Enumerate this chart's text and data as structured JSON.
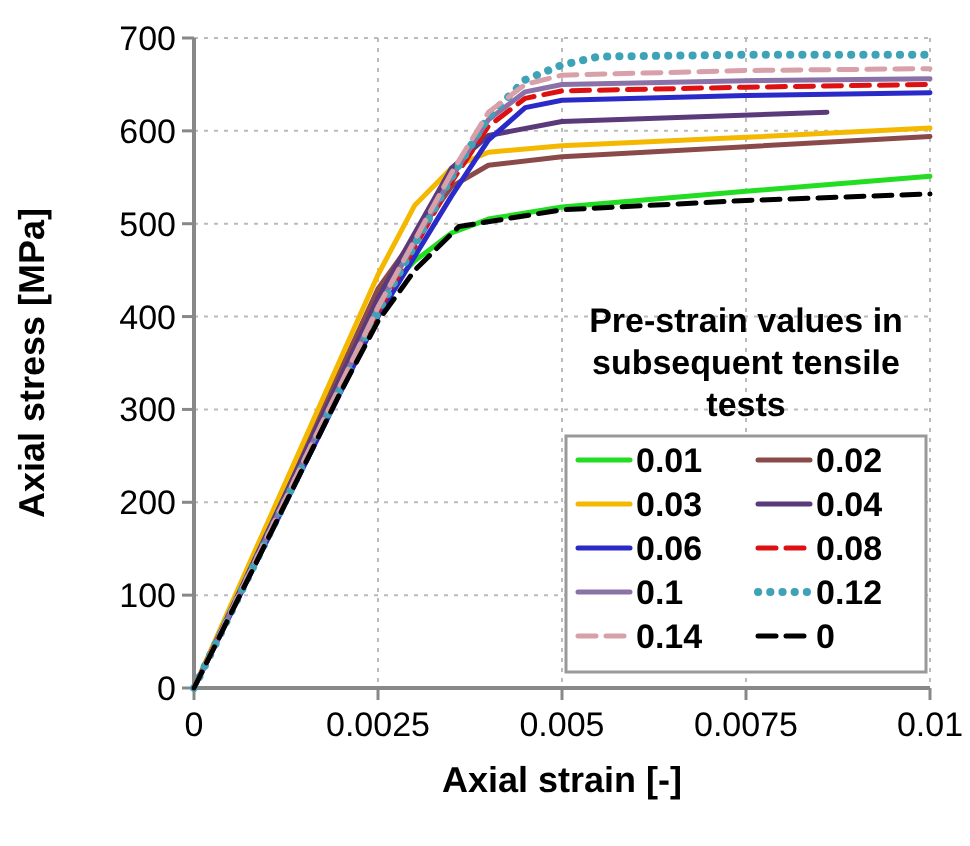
{
  "chart_data": {
    "type": "line",
    "xlabel": "Axial strain [-]",
    "ylabel": "Axial stress [MPa]",
    "legend_title": "Pre-strain values in subsequent tensile tests",
    "xlim": [
      0,
      0.01
    ],
    "ylim": [
      0,
      700
    ],
    "xticks": [
      0,
      0.0025,
      0.005,
      0.0075,
      0.01
    ],
    "yticks": [
      0,
      100,
      200,
      300,
      400,
      500,
      600,
      700
    ],
    "grid": true,
    "legend": "bottom right",
    "marker": "none",
    "series": [
      {
        "name": "0.01",
        "color": "#22dd22",
        "line_style": "solid",
        "x": [
          0,
          0.0025,
          0.003,
          0.0035,
          0.004,
          0.005,
          0.0075,
          0.01
        ],
        "values": [
          0,
          420,
          460,
          490,
          505,
          518,
          535,
          551
        ]
      },
      {
        "name": "0.02",
        "color": "#8b4a4a",
        "line_style": "solid",
        "x": [
          0,
          0.0025,
          0.0035,
          0.004,
          0.005,
          0.0075,
          0.01
        ],
        "values": [
          0,
          430,
          540,
          563,
          572,
          583,
          594
        ]
      },
      {
        "name": "0.03",
        "color": "#f5b800",
        "line_style": "solid",
        "x": [
          0,
          0.0025,
          0.003,
          0.0035,
          0.004,
          0.005,
          0.0075,
          0.01
        ],
        "values": [
          0,
          445,
          520,
          560,
          577,
          584,
          593,
          603
        ]
      },
      {
        "name": "0.04",
        "color": "#5a3a7a",
        "line_style": "solid",
        "x": [
          0,
          0.0025,
          0.0035,
          0.004,
          0.005,
          0.0086
        ],
        "values": [
          0,
          420,
          560,
          595,
          610,
          620
        ]
      },
      {
        "name": "0.06",
        "color": "#2a2ac8",
        "line_style": "solid",
        "x": [
          0,
          0.0025,
          0.0035,
          0.004,
          0.0045,
          0.005,
          0.0075,
          0.01
        ],
        "values": [
          0,
          400,
          530,
          590,
          625,
          633,
          638,
          641
        ]
      },
      {
        "name": "0.08",
        "color": "#dd1111",
        "line_style": "dashed",
        "x": [
          0,
          0.0025,
          0.0035,
          0.004,
          0.0045,
          0.005,
          0.0075,
          0.01
        ],
        "values": [
          0,
          405,
          545,
          605,
          635,
          643,
          647,
          650
        ]
      },
      {
        "name": "0.1",
        "color": "#8a72a8",
        "line_style": "solid",
        "x": [
          0,
          0.0025,
          0.0035,
          0.004,
          0.0045,
          0.005,
          0.0075,
          0.01
        ],
        "values": [
          0,
          410,
          550,
          612,
          642,
          650,
          654,
          656
        ]
      },
      {
        "name": "0.12",
        "color": "#3fa3b8",
        "line_style": "dotted",
        "x": [
          0,
          0.0025,
          0.0035,
          0.004,
          0.0045,
          0.005,
          0.0055,
          0.0075,
          0.01
        ],
        "values": [
          0,
          405,
          550,
          615,
          655,
          671,
          680,
          682,
          682
        ]
      },
      {
        "name": "0.14",
        "color": "#d8a0a8",
        "line_style": "dashed",
        "x": [
          0,
          0.0025,
          0.0035,
          0.004,
          0.0045,
          0.005,
          0.0075,
          0.01
        ],
        "values": [
          0,
          410,
          555,
          620,
          650,
          660,
          665,
          667
        ]
      },
      {
        "name": "0",
        "color": "#000000",
        "line_style": "dashed",
        "x": [
          0,
          0.001,
          0.002,
          0.0025,
          0.003,
          0.0036,
          0.005,
          0.0075,
          0.01
        ],
        "values": [
          0,
          160,
          320,
          395,
          450,
          497,
          515,
          525,
          532
        ]
      }
    ]
  }
}
